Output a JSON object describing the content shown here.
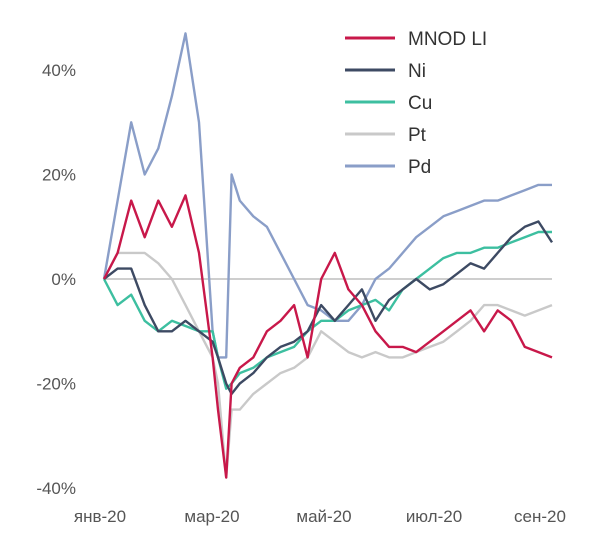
{
  "chart_data": {
    "type": "line",
    "title": "",
    "xlabel": "",
    "ylabel": "",
    "ylim": [
      -40,
      48
    ],
    "y_ticks": [
      "-40%",
      "-20%",
      "0%",
      "20%",
      "40%"
    ],
    "y_tick_values": [
      -40,
      -20,
      0,
      20,
      40
    ],
    "x_ticks": [
      "янв-20",
      "мар-20",
      "май-20",
      "июл-20",
      "сен-20"
    ],
    "x_tick_months": [
      0,
      2,
      4,
      6,
      8
    ],
    "zero_line": true,
    "legend_position": "top-right",
    "x_months": [
      0,
      0.25,
      0.5,
      0.75,
      1.0,
      1.25,
      1.5,
      1.75,
      2.0,
      2.1,
      2.25,
      2.35,
      2.5,
      2.75,
      3.0,
      3.25,
      3.5,
      3.75,
      4.0,
      4.25,
      4.5,
      4.75,
      5.0,
      5.25,
      5.5,
      5.75,
      6.0,
      6.25,
      6.5,
      6.75,
      7.0,
      7.25,
      7.5,
      7.75,
      8.0,
      8.25
    ],
    "series": [
      {
        "name": "MNOD LI",
        "color": "#c8184a",
        "values": [
          0,
          5,
          15,
          8,
          15,
          10,
          16,
          5,
          -15,
          -25,
          -38,
          -20,
          -17,
          -15,
          -10,
          -8,
          -5,
          -15,
          0,
          5,
          -2,
          -5,
          -10,
          -13,
          -13,
          -14,
          -12,
          -10,
          -8,
          -6,
          -10,
          -6,
          -8,
          -13,
          -14,
          -15
        ]
      },
      {
        "name": "Ni",
        "color": "#3d4a63",
        "values": [
          0,
          2,
          2,
          -5,
          -10,
          -10,
          -8,
          -10,
          -12,
          -15,
          -20,
          -22,
          -20,
          -18,
          -15,
          -13,
          -12,
          -10,
          -5,
          -8,
          -5,
          -2,
          -8,
          -4,
          -2,
          0,
          -2,
          -1,
          1,
          3,
          2,
          5,
          8,
          10,
          11,
          7
        ]
      },
      {
        "name": "Cu",
        "color": "#3dbfa0",
        "values": [
          0,
          -5,
          -3,
          -8,
          -10,
          -8,
          -9,
          -10,
          -10,
          -15,
          -21,
          -20,
          -18,
          -17,
          -15,
          -14,
          -13,
          -10,
          -8,
          -8,
          -6,
          -5,
          -4,
          -6,
          -2,
          0,
          2,
          4,
          5,
          5,
          6,
          6,
          7,
          8,
          9,
          9
        ]
      },
      {
        "name": "Pt",
        "color": "#c9c9c9",
        "values": [
          0,
          5,
          5,
          5,
          3,
          0,
          -5,
          -10,
          -15,
          -20,
          -38,
          -25,
          -25,
          -22,
          -20,
          -18,
          -17,
          -15,
          -10,
          -12,
          -14,
          -15,
          -14,
          -15,
          -15,
          -14,
          -13,
          -12,
          -10,
          -8,
          -5,
          -5,
          -6,
          -7,
          -6,
          -5
        ]
      },
      {
        "name": "Pd",
        "color": "#8a9ec8",
        "values": [
          0,
          15,
          30,
          20,
          25,
          35,
          47,
          30,
          -10,
          -15,
          -15,
          20,
          15,
          12,
          10,
          5,
          0,
          -5,
          -6,
          -8,
          -8,
          -5,
          0,
          2,
          5,
          8,
          10,
          12,
          13,
          14,
          15,
          15,
          16,
          17,
          18,
          18
        ]
      }
    ]
  }
}
